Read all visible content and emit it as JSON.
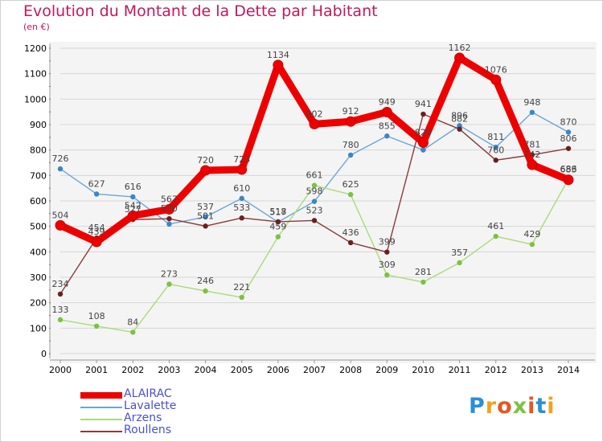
{
  "title": "Evolution du Montant de la Dette par Habitant",
  "subtitle": "(en €)",
  "logo": {
    "text": "Proxiti"
  },
  "chart_data": {
    "type": "line",
    "x": [
      "2000",
      "2001",
      "2002",
      "2003",
      "2004",
      "2005",
      "2006",
      "2007",
      "2008",
      "2009",
      "2010",
      "2011",
      "2012",
      "2013",
      "2014"
    ],
    "ylim": [
      0,
      1200
    ],
    "yticks": [
      0,
      100,
      200,
      300,
      400,
      500,
      600,
      700,
      800,
      900,
      1000,
      1100,
      1200
    ],
    "grid": true,
    "legend_position": "bottom-left",
    "series": [
      {
        "name": "Lavalette",
        "color": "#6aa6d6",
        "point_color": "#3a86c8",
        "values": [
          726,
          627,
          616,
          509,
          537,
          610,
          517,
          598,
          780,
          855,
          800,
          896,
          811,
          948,
          870
        ],
        "labels": [
          "726",
          "627",
          "616",
          "",
          "537",
          "610",
          "517",
          "598",
          "780",
          "855",
          "",
          "896",
          "811",
          "948",
          "870"
        ]
      },
      {
        "name": "Arzens",
        "color": "#a8dc7a",
        "point_color": "#7cc242",
        "values": [
          133,
          108,
          84,
          273,
          246,
          221,
          459,
          661,
          625,
          309,
          281,
          357,
          461,
          429,
          686
        ],
        "labels": [
          "133",
          "108",
          "84",
          "273",
          "246",
          "221",
          "459",
          "661",
          "625",
          "309",
          "281",
          "357",
          "461",
          "429",
          "686"
        ]
      },
      {
        "name": "Roullens",
        "color": "#8b3a3a",
        "point_color": "#6b1f1f",
        "values": [
          234,
          454,
          527,
          530,
          501,
          533,
          518,
          523,
          436,
          399,
          941,
          882,
          760,
          781,
          806
        ],
        "labels": [
          "234",
          "454",
          "527",
          "530",
          "501",
          "533",
          "518",
          "523",
          "436",
          "399",
          "941",
          "882",
          "760",
          "781",
          "806"
        ]
      },
      {
        "name": "ALAIRAC",
        "color": "#ee0000",
        "point_color": "#ee0000",
        "values": [
          504,
          439,
          542,
          567,
          720,
          723,
          1134,
          902,
          912,
          949,
          829,
          1162,
          1076,
          742,
          683
        ],
        "labels": [
          "504",
          "439",
          "542",
          "567",
          "720",
          "723",
          "1134",
          "902",
          "912",
          "949",
          "829",
          "1162",
          "1076",
          "742",
          "683"
        ]
      }
    ],
    "legend_order": [
      "ALAIRAC",
      "Lavalette",
      "Arzens",
      "Roullens"
    ]
  }
}
